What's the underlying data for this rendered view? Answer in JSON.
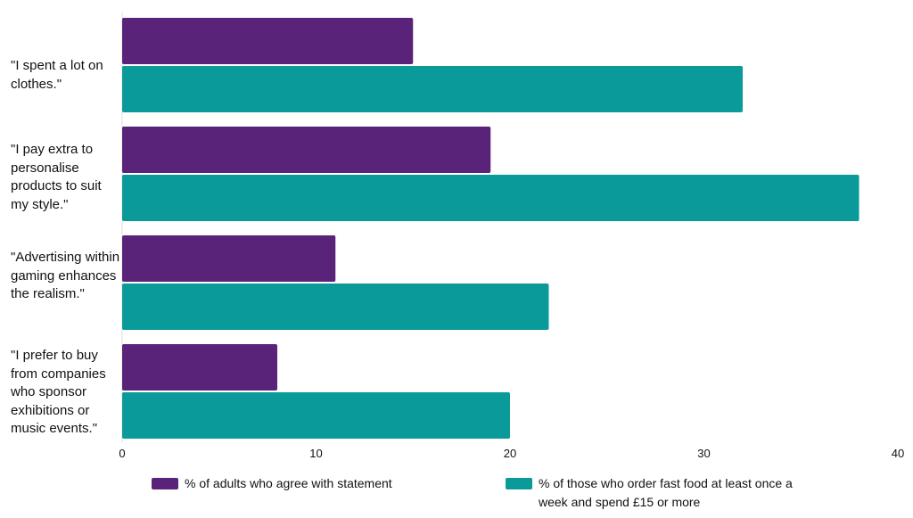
{
  "chart_data": {
    "type": "bar",
    "orientation": "horizontal",
    "categories": [
      "\"I spent a lot on clothes.\"",
      "\"I pay extra to personalise products to suit my style.\"",
      "\"Advertising within gaming enhances the realism.\"",
      "\"I prefer to buy from companies who sponsor exhibitions or music events.\""
    ],
    "series": [
      {
        "name": "% of adults who agree with statement",
        "color": "#5a237a",
        "values": [
          15,
          19,
          11,
          8
        ]
      },
      {
        "name": "% of those who order fast food at least once a week and spend £15 or more",
        "color": "#0b9a9a",
        "values": [
          32,
          38,
          22,
          20
        ]
      }
    ],
    "xlim": [
      0,
      40
    ],
    "x_ticks": [
      "0",
      "10",
      "20",
      "30",
      "40"
    ],
    "title": "",
    "xlabel": "",
    "ylabel": "",
    "grid": false,
    "legend_position": "bottom"
  }
}
